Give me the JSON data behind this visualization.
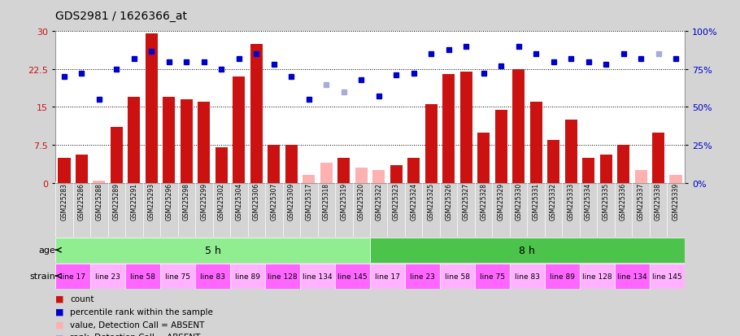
{
  "title": "GDS2981 / 1626366_at",
  "samples": [
    "GSM225283",
    "GSM225286",
    "GSM225288",
    "GSM225289",
    "GSM225291",
    "GSM225293",
    "GSM225296",
    "GSM225298",
    "GSM225299",
    "GSM225302",
    "GSM225304",
    "GSM225306",
    "GSM225307",
    "GSM225309",
    "GSM225317",
    "GSM225318",
    "GSM225319",
    "GSM225320",
    "GSM225322",
    "GSM225323",
    "GSM225324",
    "GSM225325",
    "GSM225326",
    "GSM225327",
    "GSM225328",
    "GSM225329",
    "GSM225330",
    "GSM225331",
    "GSM225332",
    "GSM225333",
    "GSM225334",
    "GSM225335",
    "GSM225336",
    "GSM225337",
    "GSM225338",
    "GSM225339"
  ],
  "count_values": [
    5.0,
    5.5,
    0.5,
    11.0,
    17.0,
    29.5,
    17.0,
    16.5,
    16.0,
    7.0,
    21.0,
    27.5,
    7.5,
    7.5,
    1.5,
    4.0,
    5.0,
    3.0,
    2.5,
    3.5,
    5.0,
    15.5,
    21.5,
    22.0,
    10.0,
    14.5,
    22.5,
    16.0,
    8.5,
    12.5,
    5.0,
    5.5,
    7.5,
    2.5,
    10.0,
    1.5
  ],
  "count_absent": [
    false,
    false,
    true,
    false,
    false,
    false,
    false,
    false,
    false,
    false,
    false,
    false,
    false,
    false,
    true,
    true,
    false,
    true,
    true,
    false,
    false,
    false,
    false,
    false,
    false,
    false,
    false,
    false,
    false,
    false,
    false,
    false,
    false,
    true,
    false,
    true
  ],
  "rank_values": [
    70,
    72,
    55,
    75,
    82,
    87,
    80,
    80,
    80,
    75,
    82,
    85,
    78,
    70,
    55,
    65,
    60,
    68,
    57,
    71,
    72,
    85,
    88,
    90,
    72,
    77,
    90,
    85,
    80,
    82,
    80,
    78,
    85,
    82,
    85,
    82
  ],
  "rank_absent": [
    false,
    false,
    false,
    false,
    false,
    false,
    false,
    false,
    false,
    false,
    false,
    false,
    false,
    false,
    false,
    true,
    true,
    false,
    false,
    false,
    false,
    false,
    false,
    false,
    false,
    false,
    false,
    false,
    false,
    false,
    false,
    false,
    false,
    false,
    true,
    false
  ],
  "age_groups": [
    {
      "label": "5 h",
      "start": 0,
      "end": 18,
      "color": "#90EE90"
    },
    {
      "label": "8 h",
      "start": 18,
      "end": 36,
      "color": "#4CC44C"
    }
  ],
  "strain_groups": [
    {
      "label": "line 17",
      "start": 0,
      "end": 2,
      "color": "#FF66FF"
    },
    {
      "label": "line 23",
      "start": 2,
      "end": 4,
      "color": "#FFB3FF"
    },
    {
      "label": "line 58",
      "start": 4,
      "end": 6,
      "color": "#FF66FF"
    },
    {
      "label": "line 75",
      "start": 6,
      "end": 8,
      "color": "#FFB3FF"
    },
    {
      "label": "line 83",
      "start": 8,
      "end": 10,
      "color": "#FF66FF"
    },
    {
      "label": "line 89",
      "start": 10,
      "end": 12,
      "color": "#FFB3FF"
    },
    {
      "label": "line 128",
      "start": 12,
      "end": 14,
      "color": "#FF66FF"
    },
    {
      "label": "line 134",
      "start": 14,
      "end": 16,
      "color": "#FFB3FF"
    },
    {
      "label": "line 145",
      "start": 16,
      "end": 18,
      "color": "#FF66FF"
    },
    {
      "label": "line 17",
      "start": 18,
      "end": 20,
      "color": "#FFB3FF"
    },
    {
      "label": "line 23",
      "start": 20,
      "end": 22,
      "color": "#FF66FF"
    },
    {
      "label": "line 58",
      "start": 22,
      "end": 24,
      "color": "#FFB3FF"
    },
    {
      "label": "line 75",
      "start": 24,
      "end": 26,
      "color": "#FF66FF"
    },
    {
      "label": "line 83",
      "start": 26,
      "end": 28,
      "color": "#FFB3FF"
    },
    {
      "label": "line 89",
      "start": 28,
      "end": 30,
      "color": "#FF66FF"
    },
    {
      "label": "line 128",
      "start": 30,
      "end": 32,
      "color": "#FFB3FF"
    },
    {
      "label": "line 134",
      "start": 32,
      "end": 34,
      "color": "#FF66FF"
    },
    {
      "label": "line 145",
      "start": 34,
      "end": 36,
      "color": "#FFB3FF"
    }
  ],
  "ylim_left": [
    0,
    30
  ],
  "ylim_right": [
    0,
    100
  ],
  "yticks_left": [
    0,
    7.5,
    15,
    22.5,
    30
  ],
  "yticks_right": [
    0,
    25,
    50,
    75,
    100
  ],
  "bar_color_present": "#CC1111",
  "bar_color_absent": "#FFB0B0",
  "rank_color_present": "#0000CC",
  "rank_color_absent": "#AAAADD",
  "bg_color": "#D4D4D4",
  "xticklabel_bg": "#C8C8C8",
  "plot_bg_color": "#FFFFFF"
}
